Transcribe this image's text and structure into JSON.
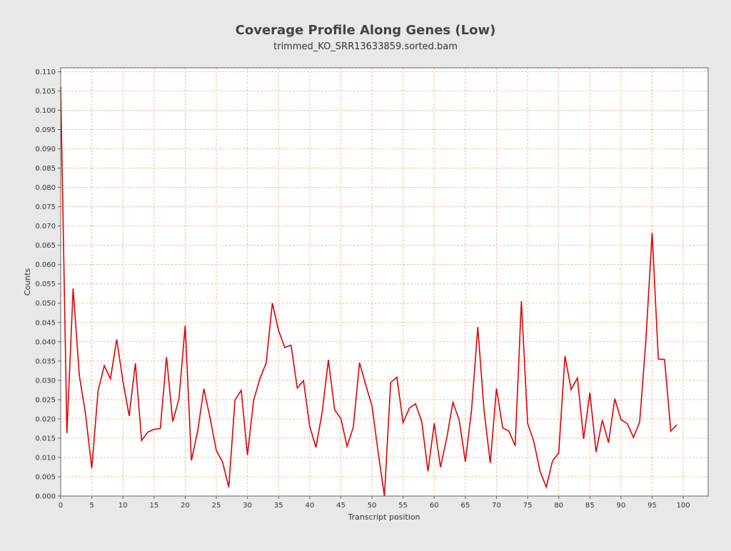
{
  "chart_data": {
    "type": "line",
    "title": "Coverage Profile Along Genes (Low)",
    "subtitle": "trimmed_KO_SRR13633859.sorted.bam",
    "xlabel": "Transcript position",
    "ylabel": "Counts",
    "xlim": [
      0,
      104
    ],
    "ylim": [
      0,
      0.111
    ],
    "xticks": [
      0,
      5,
      10,
      15,
      20,
      25,
      30,
      35,
      40,
      45,
      50,
      55,
      60,
      65,
      70,
      75,
      80,
      85,
      90,
      95,
      100
    ],
    "yticks": [
      0.0,
      0.005,
      0.01,
      0.015,
      0.02,
      0.025,
      0.03,
      0.035,
      0.04,
      0.045,
      0.05,
      0.055,
      0.06,
      0.065,
      0.07,
      0.075,
      0.08,
      0.085,
      0.09,
      0.095,
      0.1,
      0.105,
      0.11
    ],
    "ytick_decimals": 3,
    "grid": true,
    "colors": {
      "background": "#e8e8e8",
      "plot_background": "#ffffff",
      "grid": "#f4c0a0",
      "series": "#e00000"
    },
    "series": [
      {
        "x": [
          0,
          1,
          2,
          3,
          4,
          5,
          6,
          7,
          8,
          9,
          10,
          11,
          12,
          13,
          14,
          15,
          16,
          17,
          18,
          19,
          20,
          21,
          22,
          23,
          24,
          25,
          26,
          27,
          28,
          29,
          30,
          31,
          32,
          33,
          34,
          35,
          36,
          37,
          38,
          39,
          40,
          41,
          42,
          43,
          44,
          45,
          46,
          47,
          48,
          49,
          50,
          51,
          52,
          53,
          54,
          55,
          56,
          57,
          58,
          59,
          60,
          61,
          62,
          63,
          64,
          65,
          66,
          67,
          68,
          69,
          70,
          71,
          72,
          73,
          74,
          75,
          76,
          77,
          78,
          79,
          80,
          81,
          82,
          83,
          84,
          85,
          86,
          87,
          88,
          89,
          90,
          91,
          92,
          93,
          94,
          95,
          96,
          97,
          98,
          99
        ],
        "values": [
          0.106,
          0.0163,
          0.0538,
          0.0312,
          0.0212,
          0.0072,
          0.0272,
          0.0338,
          0.0304,
          0.0406,
          0.0298,
          0.0208,
          0.0344,
          0.0144,
          0.0166,
          0.0173,
          0.0175,
          0.036,
          0.0193,
          0.0252,
          0.0442,
          0.0092,
          0.0168,
          0.0278,
          0.0202,
          0.0118,
          0.0088,
          0.0023,
          0.0249,
          0.0274,
          0.0106,
          0.0249,
          0.0304,
          0.0345,
          0.05,
          0.0429,
          0.0385,
          0.0391,
          0.028,
          0.0299,
          0.0181,
          0.0126,
          0.0217,
          0.0353,
          0.0224,
          0.0201,
          0.0129,
          0.0178,
          0.0346,
          0.0288,
          0.0234,
          0.0113,
          0.0,
          0.0294,
          0.0308,
          0.019,
          0.0228,
          0.0239,
          0.0193,
          0.0064,
          0.0189,
          0.0075,
          0.0149,
          0.0243,
          0.0198,
          0.0089,
          0.0224,
          0.0438,
          0.0222,
          0.0086,
          0.0279,
          0.0177,
          0.0168,
          0.013,
          0.0505,
          0.0189,
          0.0141,
          0.0064,
          0.0023,
          0.0091,
          0.0112,
          0.0363,
          0.0276,
          0.0306,
          0.0148,
          0.0268,
          0.0114,
          0.0197,
          0.0138,
          0.0252,
          0.0198,
          0.0188,
          0.0152,
          0.0192,
          0.0404,
          0.0682,
          0.0355,
          0.0354,
          0.0168,
          0.0185
        ]
      }
    ]
  }
}
